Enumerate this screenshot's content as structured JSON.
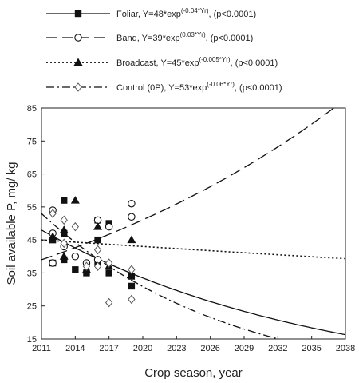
{
  "chart_data": {
    "type": "scatter",
    "title": "",
    "xlabel": "Crop season, year",
    "ylabel": "Soil available P, mg/ kg",
    "xlim": [
      2011,
      2038
    ],
    "ylim": [
      15,
      85
    ],
    "xticks": [
      2011,
      2014,
      2017,
      2020,
      2023,
      2026,
      2029,
      2032,
      2035,
      2038
    ],
    "yticks": [
      15,
      25,
      35,
      45,
      55,
      65,
      75,
      85
    ],
    "grid": false,
    "legend_position": "top",
    "series": [
      {
        "name": "Foliar",
        "equation": "Y=48*exp",
        "exponent": "(-0.04*Yr)",
        "p_value": "(p<0.0001)",
        "marker": "filled-square",
        "line_style": "solid",
        "fit": {
          "a": 48,
          "b": -0.04
        },
        "points": [
          {
            "x": 2012,
            "y": 45
          },
          {
            "x": 2012,
            "y": 38
          },
          {
            "x": 2013,
            "y": 57
          },
          {
            "x": 2013,
            "y": 47
          },
          {
            "x": 2013,
            "y": 39
          },
          {
            "x": 2014,
            "y": 36
          },
          {
            "x": 2015,
            "y": 35
          },
          {
            "x": 2016,
            "y": 51
          },
          {
            "x": 2016,
            "y": 45
          },
          {
            "x": 2016,
            "y": 38
          },
          {
            "x": 2017,
            "y": 50
          },
          {
            "x": 2017,
            "y": 35
          },
          {
            "x": 2019,
            "y": 34
          },
          {
            "x": 2019,
            "y": 31
          }
        ]
      },
      {
        "name": "Band",
        "equation": "Y=39*exp",
        "exponent": "(0.03*Yr)",
        "p_value": "(p<0.0001)",
        "marker": "open-circle",
        "line_style": "long-dash",
        "fit": {
          "a": 39,
          "b": 0.03
        },
        "points": [
          {
            "x": 2012,
            "y": 54
          },
          {
            "x": 2012,
            "y": 47
          },
          {
            "x": 2012,
            "y": 38
          },
          {
            "x": 2013,
            "y": 43
          },
          {
            "x": 2014,
            "y": 40
          },
          {
            "x": 2015,
            "y": 38
          },
          {
            "x": 2016,
            "y": 51
          },
          {
            "x": 2016,
            "y": 39
          },
          {
            "x": 2017,
            "y": 49
          },
          {
            "x": 2019,
            "y": 56
          },
          {
            "x": 2019,
            "y": 52
          }
        ]
      },
      {
        "name": "Broadcast",
        "equation": "Y=45*exp",
        "exponent": "(-0.005*Yr)",
        "p_value": "(p<0.0001)",
        "marker": "filled-triangle",
        "line_style": "dotted",
        "fit": {
          "a": 45,
          "b": -0.005
        },
        "points": [
          {
            "x": 2012,
            "y": 46
          },
          {
            "x": 2013,
            "y": 48
          },
          {
            "x": 2013,
            "y": 40
          },
          {
            "x": 2014,
            "y": 57
          },
          {
            "x": 2015,
            "y": 36
          },
          {
            "x": 2016,
            "y": 49
          },
          {
            "x": 2017,
            "y": 37
          },
          {
            "x": 2019,
            "y": 45
          }
        ]
      },
      {
        "name": "Control (0P)",
        "equation": "Y=53*exp",
        "exponent": "(-0.06*Yr)",
        "p_value": "(p<0.0001)",
        "marker": "open-diamond",
        "line_style": "dash-dot",
        "fit": {
          "a": 53,
          "b": -0.06
        },
        "points": [
          {
            "x": 2012,
            "y": 53
          },
          {
            "x": 2013,
            "y": 51
          },
          {
            "x": 2013,
            "y": 44
          },
          {
            "x": 2014,
            "y": 49
          },
          {
            "x": 2015,
            "y": 37
          },
          {
            "x": 2016,
            "y": 42
          },
          {
            "x": 2016,
            "y": 37
          },
          {
            "x": 2017,
            "y": 38
          },
          {
            "x": 2017,
            "y": 26
          },
          {
            "x": 2019,
            "y": 36
          },
          {
            "x": 2019,
            "y": 27
          }
        ]
      }
    ]
  }
}
